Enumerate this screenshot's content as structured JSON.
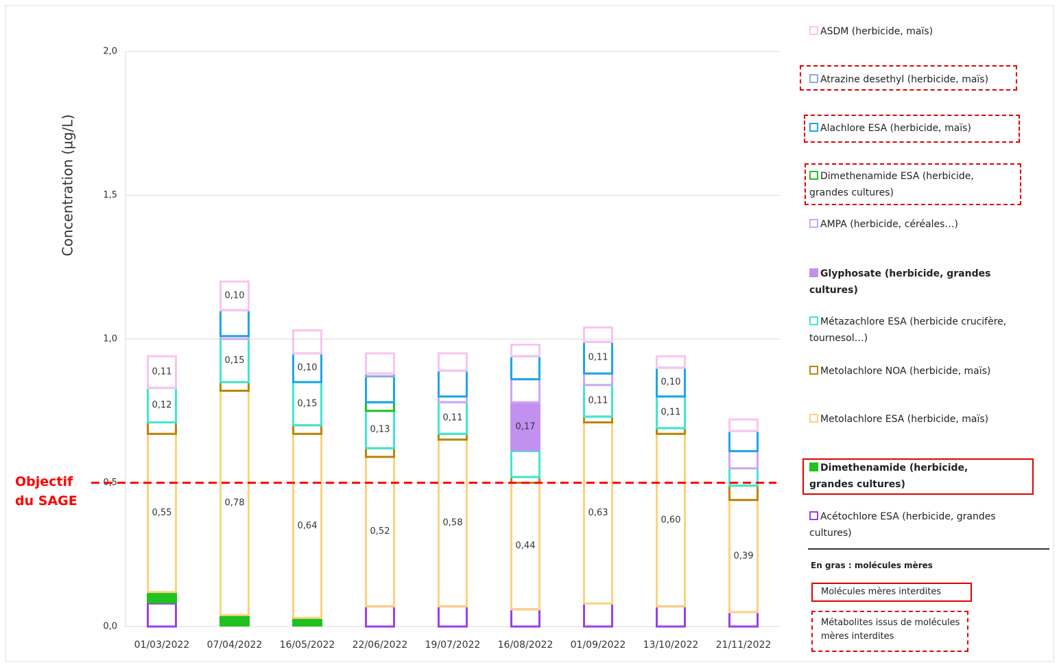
{
  "chart_data": {
    "type": "stacked_bar",
    "y_label": "Concentration (µg/L)",
    "categories": [
      "01/03/2022",
      "07/04/2022",
      "16/05/2022",
      "22/06/2022",
      "19/07/2022",
      "16/08/2022",
      "01/09/2022",
      "13/10/2022",
      "21/11/2022"
    ],
    "ylim": [
      0,
      2
    ],
    "yticks": [
      {
        "value": 0,
        "label": "0,0"
      },
      {
        "value": 0.5,
        "label": "0,5"
      },
      {
        "value": 1,
        "label": "1,0"
      },
      {
        "value": 1.5,
        "label": "1,5"
      },
      {
        "value": 2,
        "label": "2,0"
      }
    ],
    "grid": true,
    "threshold": {
      "value": 0.5,
      "label": "Objectif du SAGE",
      "color": "#ff0000"
    },
    "series": [
      {
        "name": "ASDM (herbicide, maïs)",
        "color": "#f9c4f0",
        "style": "outline",
        "values": [
          0.11,
          0.1,
          0.08,
          0.07,
          0.06,
          0.04,
          0.05,
          0.04,
          0.04
        ],
        "value_labels": [
          "0,11",
          "0,10",
          null,
          null,
          null,
          null,
          null,
          null,
          null
        ]
      },
      {
        "name": "Atrazine desethyl (herbicide, maïs)",
        "color": "#8eaadb",
        "style": "outline",
        "frame": "dashed",
        "values": [
          0,
          0,
          0,
          0.01,
          0,
          0,
          0,
          0,
          0
        ],
        "value_labels": [
          null,
          null,
          null,
          null,
          null,
          null,
          null,
          null,
          null
        ]
      },
      {
        "name": "Alachlore ESA (herbicide, maïs)",
        "color": "#1ea5e8",
        "style": "outline",
        "frame": "dashed",
        "values": [
          0,
          0.09,
          0.1,
          0.09,
          0.09,
          0.08,
          0.11,
          0.1,
          0.07
        ],
        "value_labels": [
          null,
          null,
          "0,10",
          null,
          null,
          null,
          "0,11",
          "0,10",
          null
        ]
      },
      {
        "name": "Dimethenamide ESA (herbicide, grandes cultures)",
        "color": "#22c322",
        "style": "outline",
        "frame": "dashed",
        "values": [
          0,
          0,
          0,
          0.03,
          0,
          0,
          0,
          0,
          0
        ],
        "value_labels": [
          null,
          null,
          null,
          null,
          null,
          null,
          null,
          null,
          null
        ]
      },
      {
        "name": "AMPA (herbicide, céréales…)",
        "color": "#cfa6f3",
        "style": "outline",
        "values": [
          0,
          0.01,
          0,
          0,
          0.02,
          0.08,
          0.04,
          0,
          0.06
        ],
        "value_labels": [
          null,
          null,
          null,
          null,
          null,
          null,
          null,
          null,
          null
        ]
      },
      {
        "name": "Glyphosate (herbicide, grandes cultures)",
        "color": "#c291ef",
        "style": "fill",
        "bold": true,
        "values": [
          0,
          0,
          0,
          0,
          0,
          0.17,
          0,
          0,
          0
        ],
        "value_labels": [
          null,
          null,
          null,
          null,
          null,
          "0,17",
          null,
          null,
          null
        ]
      },
      {
        "name": "Métazachlore ESA  (herbicide crucifère, tournesol…)",
        "color": "#3ee8d0",
        "style": "outline",
        "values": [
          0.12,
          0.15,
          0.15,
          0.13,
          0.11,
          0.09,
          0.11,
          0.11,
          0.06
        ],
        "value_labels": [
          "0,12",
          "0,15",
          "0,15",
          "0,13",
          "0,11",
          null,
          "0,11",
          "0,11",
          null
        ]
      },
      {
        "name": "Metolachlore NOA (herbicide, maïs)",
        "color": "#b8860b",
        "style": "outline",
        "values": [
          0.04,
          0.03,
          0.03,
          0.03,
          0.02,
          0.02,
          0.02,
          0.02,
          0.05
        ],
        "value_labels": [
          null,
          null,
          null,
          null,
          null,
          null,
          null,
          null,
          null
        ]
      },
      {
        "name": "Metolachlore ESA (herbicide, maïs)",
        "color": "#ffd27f",
        "style": "outline",
        "values": [
          0.55,
          0.78,
          0.64,
          0.52,
          0.58,
          0.44,
          0.63,
          0.6,
          0.39
        ],
        "value_labels": [
          "0,55",
          "0,78",
          "0,64",
          "0,52",
          "0,58",
          "0,44",
          "0,63",
          "0,60",
          "0,39"
        ]
      },
      {
        "name": "Dimethenamide (herbicide, grandes cultures)",
        "color": "#1fc21f",
        "style": "fill",
        "bold": true,
        "frame": "solid",
        "values": [
          0.04,
          0.04,
          0.03,
          0,
          0,
          0,
          0,
          0,
          0
        ],
        "value_labels": [
          null,
          null,
          null,
          null,
          null,
          null,
          null,
          null,
          null
        ]
      },
      {
        "name": "Acétochlore ESA (herbicide, grandes cultures)",
        "color": "#9b3fe8",
        "style": "outline",
        "values": [
          0.08,
          0,
          0,
          0.07,
          0.07,
          0.06,
          0.08,
          0.07,
          0.05
        ],
        "value_labels": [
          null,
          null,
          null,
          null,
          null,
          null,
          null,
          null,
          null
        ]
      }
    ],
    "notes": {
      "bold_note": "En gras : molécules mères",
      "solid_frame": "Molécules mères interdites",
      "dashed_frame": "Métabolites issus de molécules mères interdites"
    }
  }
}
